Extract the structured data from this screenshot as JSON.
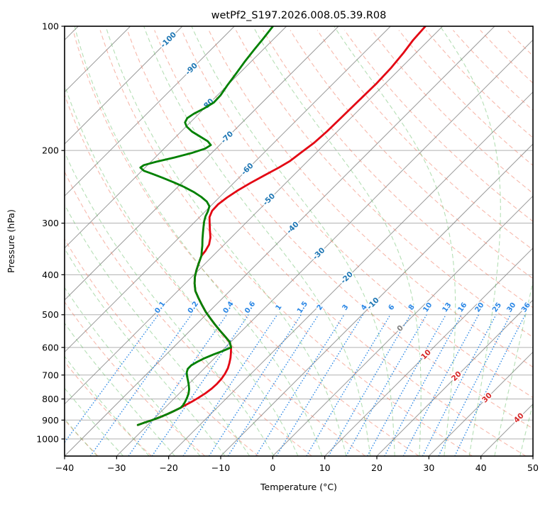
{
  "title": "wetPf2_S197.2026.008.05.39.R08",
  "axes": {
    "x_label": "Temperature (°C)",
    "y_label": "Pressure (hPa)",
    "x_ticks": [
      -40,
      -30,
      -20,
      -10,
      0,
      10,
      20,
      30,
      40,
      50
    ],
    "y_ticks": [
      100,
      200,
      300,
      400,
      500,
      600,
      700,
      800,
      900,
      1000
    ]
  },
  "chart_data": {
    "type": "line",
    "subtype": "skewt-logp",
    "title": "wetPf2_S197.2026.008.05.39.R08",
    "xlabel": "Temperature (°C)",
    "ylabel": "Pressure (hPa)",
    "x_range": [
      -40,
      50
    ],
    "pressure_range": [
      100,
      1100
    ],
    "skew_deg": 45,
    "grid": "on",
    "isotherm_step": 10,
    "isotherm_label_values": [
      -100,
      -90,
      -80,
      -70,
      -60,
      -50,
      -40,
      -30,
      -20,
      -10,
      0,
      10,
      20,
      30,
      40
    ],
    "isotherm_label_pressures": [
      108,
      127,
      155,
      186,
      222,
      263,
      308,
      356,
      407,
      470,
      540,
      625,
      705,
      795,
      890
    ],
    "mixing_ratio_values": [
      0.1,
      0.2,
      0.4,
      0.6,
      1,
      1.5,
      2,
      3,
      4,
      6,
      8,
      10,
      13,
      16,
      20,
      25,
      30,
      36
    ],
    "mixing_ratio_top_hpa": 500,
    "dry_adiabats_theta_c": {
      "start": -60,
      "end": 200,
      "step": 10
    },
    "moist_adiabats_t0_c": {
      "start": -40,
      "end": 45,
      "step": 5
    },
    "series": [
      {
        "name": "temperature",
        "color": "#e30613",
        "points": [
          [
            100,
            -53.3
          ],
          [
            108,
            -53
          ],
          [
            116,
            -52.4
          ],
          [
            126,
            -51.9
          ],
          [
            138,
            -51.7
          ],
          [
            152,
            -51.8
          ],
          [
            166,
            -51.9
          ],
          [
            180,
            -52
          ],
          [
            192,
            -52.3
          ],
          [
            202,
            -52.9
          ],
          [
            212,
            -53.4
          ],
          [
            220,
            -54.3
          ],
          [
            230,
            -55.6
          ],
          [
            240,
            -56.8
          ],
          [
            250,
            -57.8
          ],
          [
            260,
            -58.5
          ],
          [
            270,
            -58.9
          ],
          [
            280,
            -58.8
          ],
          [
            290,
            -58.1
          ],
          [
            300,
            -56.9
          ],
          [
            312,
            -55.5
          ],
          [
            325,
            -54
          ],
          [
            338,
            -52.9
          ],
          [
            350,
            -52.4
          ],
          [
            360,
            -52.2
          ],
          [
            375,
            -51.3
          ],
          [
            390,
            -50.4
          ],
          [
            405,
            -49.4
          ],
          [
            420,
            -48.2
          ],
          [
            438,
            -46.6
          ],
          [
            456,
            -44.6
          ],
          [
            474,
            -42.6
          ],
          [
            492,
            -40.6
          ],
          [
            510,
            -38.5
          ],
          [
            528,
            -36.4
          ],
          [
            546,
            -34.3
          ],
          [
            564,
            -32.2
          ],
          [
            582,
            -30.2
          ],
          [
            600,
            -28.9
          ],
          [
            618,
            -27.9
          ],
          [
            636,
            -27
          ],
          [
            655,
            -26.2
          ],
          [
            674,
            -25.5
          ],
          [
            695,
            -25
          ],
          [
            715,
            -24.7
          ],
          [
            735,
            -24.6
          ],
          [
            755,
            -24.7
          ],
          [
            775,
            -25
          ],
          [
            795,
            -25.5
          ],
          [
            812,
            -26
          ],
          [
            828,
            -26.6
          ],
          [
            840,
            -27
          ],
          [
            855,
            -27.6
          ],
          [
            870,
            -28.3
          ],
          [
            885,
            -29.1
          ],
          [
            900,
            -30.1
          ],
          [
            912,
            -31
          ],
          [
            925,
            -31.9
          ]
        ]
      },
      {
        "name": "dewpoint",
        "color": "#008000",
        "points": [
          [
            100,
            -82.6
          ],
          [
            107,
            -82.1
          ],
          [
            114,
            -81.7
          ],
          [
            122,
            -81.2
          ],
          [
            130,
            -80.6
          ],
          [
            139,
            -80
          ],
          [
            147,
            -79.4
          ],
          [
            153,
            -79.3
          ],
          [
            158,
            -80
          ],
          [
            163,
            -81
          ],
          [
            167,
            -81.4
          ],
          [
            171,
            -81
          ],
          [
            175,
            -79.9
          ],
          [
            180,
            -77.9
          ],
          [
            185,
            -75.4
          ],
          [
            190,
            -73
          ],
          [
            194,
            -71.7
          ],
          [
            198,
            -72.1
          ],
          [
            203,
            -73.9
          ],
          [
            208,
            -76.3
          ],
          [
            213,
            -79
          ],
          [
            217,
            -80.7
          ],
          [
            220,
            -80.9
          ],
          [
            224,
            -79.6
          ],
          [
            228,
            -77.3
          ],
          [
            233,
            -74.6
          ],
          [
            239,
            -71.6
          ],
          [
            245,
            -68.8
          ],
          [
            252,
            -66
          ],
          [
            259,
            -63.6
          ],
          [
            266,
            -61.6
          ],
          [
            273,
            -60.2
          ],
          [
            281,
            -59.5
          ],
          [
            289,
            -59
          ],
          [
            297,
            -58.3
          ],
          [
            306,
            -57.4
          ],
          [
            316,
            -56.4
          ],
          [
            328,
            -55.2
          ],
          [
            340,
            -54
          ],
          [
            351,
            -53
          ],
          [
            360,
            -52.2
          ],
          [
            375,
            -51.3
          ],
          [
            390,
            -50.4
          ],
          [
            405,
            -49.4
          ],
          [
            420,
            -48.2
          ],
          [
            438,
            -46.6
          ],
          [
            456,
            -44.6
          ],
          [
            474,
            -42.6
          ],
          [
            492,
            -40.6
          ],
          [
            510,
            -38.5
          ],
          [
            528,
            -36.4
          ],
          [
            546,
            -34.3
          ],
          [
            564,
            -32.2
          ],
          [
            582,
            -30.2
          ],
          [
            600,
            -28.9
          ],
          [
            612,
            -29.8
          ],
          [
            624,
            -30.9
          ],
          [
            637,
            -31.9
          ],
          [
            650,
            -32.6
          ],
          [
            663,
            -33.1
          ],
          [
            676,
            -33.1
          ],
          [
            690,
            -32.6
          ],
          [
            705,
            -31.8
          ],
          [
            722,
            -30.8
          ],
          [
            740,
            -29.8
          ],
          [
            758,
            -28.9
          ],
          [
            776,
            -28.2
          ],
          [
            794,
            -27.7
          ],
          [
            812,
            -27.3
          ],
          [
            828,
            -27
          ],
          [
            840,
            -27
          ],
          [
            855,
            -27.6
          ],
          [
            870,
            -28.3
          ],
          [
            885,
            -29.1
          ],
          [
            900,
            -30.1
          ],
          [
            912,
            -31
          ],
          [
            925,
            -31.9
          ]
        ]
      }
    ],
    "colors": {
      "isotherm_line": "#808080",
      "grid_line": "#b0b0b0",
      "dry_adiabat": "#f08068",
      "moist_adiabat": "#5cb85c",
      "mixing_ratio": "#2b87e5",
      "isotherm_label_neg": "#1f77b4",
      "isotherm_label_zero": "#808080",
      "isotherm_label_pos": "#d62728"
    }
  }
}
